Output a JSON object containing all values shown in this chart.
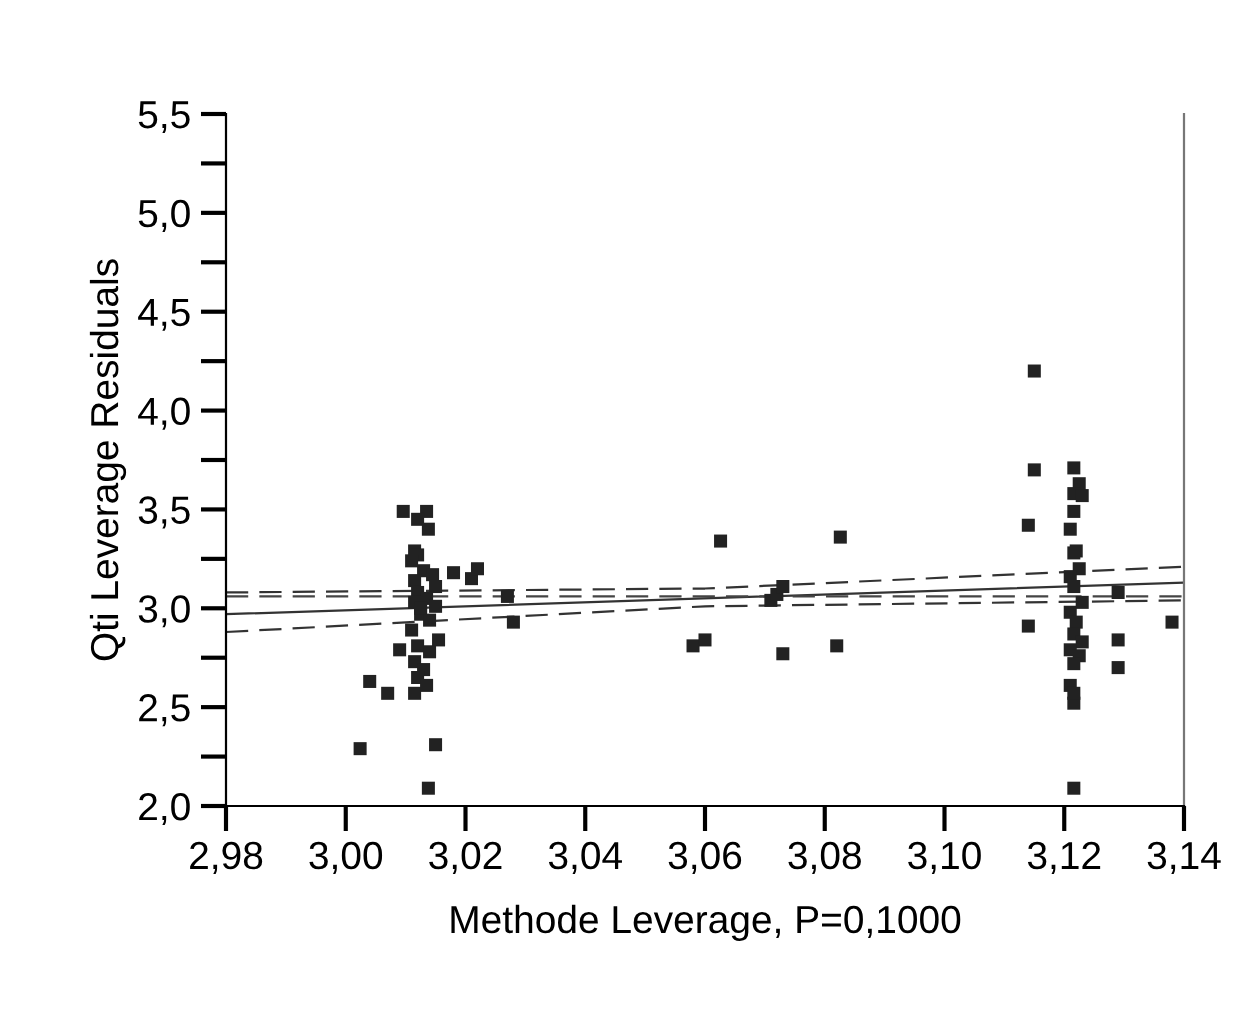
{
  "chart_data": {
    "type": "scatter",
    "xlabel": "Methode Leverage, P=0,1000",
    "ylabel": "Qti Leverage Residuals",
    "xlim": [
      2.98,
      3.14
    ],
    "xticks": [
      {
        "value": 2.98,
        "label": "2,98"
      },
      {
        "value": 3.0,
        "label": "3,00"
      },
      {
        "value": 3.02,
        "label": "3,02"
      },
      {
        "value": 3.04,
        "label": "3,04"
      },
      {
        "value": 3.06,
        "label": "3,06"
      },
      {
        "value": 3.08,
        "label": "3,08"
      },
      {
        "value": 3.1,
        "label": "3,10"
      },
      {
        "value": 3.12,
        "label": "3,12"
      },
      {
        "value": 3.14,
        "label": "3,14"
      }
    ],
    "ylim": [
      2.0,
      5.5
    ],
    "yticks": [
      {
        "value": 2.0,
        "label": "2,0"
      },
      {
        "value": 2.25,
        "label": null
      },
      {
        "value": 2.5,
        "label": "2,5"
      },
      {
        "value": 2.75,
        "label": null
      },
      {
        "value": 3.0,
        "label": "3,0"
      },
      {
        "value": 3.25,
        "label": null
      },
      {
        "value": 3.5,
        "label": "3,5"
      },
      {
        "value": 3.75,
        "label": null
      },
      {
        "value": 4.0,
        "label": "4,0"
      },
      {
        "value": 4.25,
        "label": null
      },
      {
        "value": 4.5,
        "label": "4,5"
      },
      {
        "value": 4.75,
        "label": null
      },
      {
        "value": 5.0,
        "label": "5,0"
      },
      {
        "value": 5.25,
        "label": null
      },
      {
        "value": 5.5,
        "label": "5,5"
      }
    ],
    "grid": false,
    "legend": false,
    "ref_lines": [
      {
        "axis": "y",
        "value": 3.06,
        "label": null,
        "color": "#444444",
        "line_style": "dashed"
      }
    ],
    "series": [
      {
        "color": "#222222",
        "marker": "square",
        "x": [
          3.0024,
          3.004,
          3.007,
          3.009,
          3.0138,
          3.015,
          3.018,
          3.021,
          3.022,
          3.027,
          3.028,
          3.058,
          3.06,
          3.0626,
          3.071,
          3.072,
          3.073,
          3.073,
          3.082,
          3.0826,
          3.115,
          3.115,
          3.114,
          3.114,
          3.129,
          3.129,
          3.129,
          3.138,
          3.0096,
          3.0135,
          3.012,
          3.0138,
          3.0115,
          3.012,
          3.011,
          3.013,
          3.0145,
          3.0115,
          3.015,
          3.012,
          3.0135,
          3.0115,
          3.015,
          3.0125,
          3.014,
          3.011,
          3.0155,
          3.012,
          3.014,
          3.0115,
          3.013,
          3.012,
          3.0135,
          3.0115,
          3.0125,
          3.1216,
          3.1225,
          3.1216,
          3.123,
          3.1216,
          3.121,
          3.122,
          3.1216,
          3.1225,
          3.121,
          3.1216,
          3.123,
          3.121,
          3.122,
          3.1216,
          3.123,
          3.121,
          3.1225,
          3.1216,
          3.121,
          3.1216,
          3.1216,
          3.1216
        ],
        "values": [
          2.29,
          2.63,
          2.57,
          2.79,
          2.09,
          2.31,
          3.18,
          3.15,
          3.2,
          3.06,
          2.93,
          2.81,
          2.84,
          3.34,
          3.04,
          3.07,
          3.11,
          2.77,
          2.81,
          3.36,
          4.2,
          3.7,
          3.42,
          2.91,
          3.08,
          2.84,
          2.7,
          2.93,
          3.49,
          3.49,
          3.45,
          3.4,
          3.29,
          3.27,
          3.24,
          3.19,
          3.17,
          3.14,
          3.11,
          3.08,
          3.05,
          3.03,
          3.01,
          2.97,
          2.94,
          2.89,
          2.84,
          2.81,
          2.78,
          2.73,
          2.69,
          2.65,
          2.61,
          2.57,
          3.0,
          3.71,
          3.63,
          3.58,
          3.57,
          3.49,
          3.4,
          3.29,
          3.28,
          3.2,
          3.16,
          3.11,
          3.03,
          2.98,
          2.93,
          2.87,
          2.83,
          2.79,
          2.76,
          2.72,
          2.61,
          2.52,
          2.09,
          2.57
        ]
      },
      {
        "type": "line",
        "color": "#333333",
        "line_style": "solid",
        "x": [
          2.98,
          3.14
        ],
        "values": [
          2.97,
          3.13
        ]
      },
      {
        "type": "line",
        "color": "#333333",
        "line_style": "dashed",
        "x": [
          2.98,
          3.06,
          3.14
        ],
        "values": [
          3.08,
          3.1,
          3.21
        ]
      },
      {
        "type": "line",
        "color": "#333333",
        "line_style": "dashed",
        "x": [
          2.98,
          3.06,
          3.14
        ],
        "values": [
          2.88,
          3.01,
          3.04
        ]
      }
    ]
  }
}
